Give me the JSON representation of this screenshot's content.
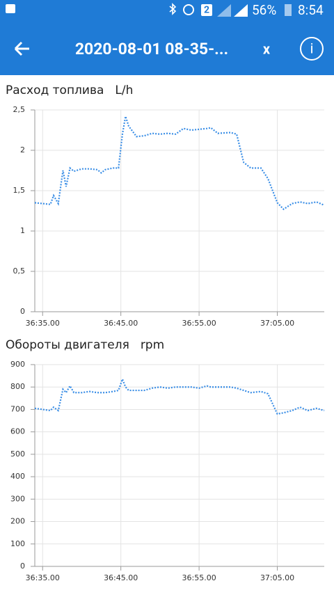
{
  "status_bar": {
    "sim": "2",
    "battery": "56%",
    "time": "8:54"
  },
  "app_bar": {
    "title": "2020-08-01 08-35-...",
    "close": "x"
  },
  "chart_data": [
    {
      "type": "line",
      "title": "Расход топлива",
      "unit": "L/h",
      "x": [
        2194,
        2195,
        2196,
        2196.4,
        2197,
        2197.6,
        2198,
        2198.5,
        2199,
        2200,
        2201,
        2202,
        2202.5,
        2203,
        2204,
        2204.7,
        2205.2,
        2205.6,
        2206,
        2207,
        2208,
        2209,
        2210,
        2211,
        2212,
        2213,
        2214,
        2215,
        2216,
        2216.5,
        2217.4,
        2219,
        2219.8,
        2220.7,
        2221.6,
        2222.9,
        2223.8,
        2225,
        2225.8,
        2226.9,
        2227.9,
        2228.9,
        2230,
        2231
      ],
      "series": [
        {
          "color": "#3a8ee6",
          "values": [
            1.35,
            1.34,
            1.33,
            1.44,
            1.34,
            1.75,
            1.55,
            1.78,
            1.74,
            1.77,
            1.77,
            1.76,
            1.72,
            1.76,
            1.78,
            1.78,
            2.2,
            2.42,
            2.3,
            2.17,
            2.18,
            2.21,
            2.2,
            2.21,
            2.2,
            2.27,
            2.25,
            2.26,
            2.27,
            2.28,
            2.21,
            2.22,
            2.2,
            1.85,
            1.78,
            1.78,
            1.65,
            1.35,
            1.27,
            1.34,
            1.36,
            1.34,
            1.36,
            1.32
          ]
        }
      ],
      "xlim": [
        2194,
        2231
      ],
      "xticks": [
        {
          "value": 2195,
          "label": "36:35.00"
        },
        {
          "value": 2205,
          "label": "36:45.00"
        },
        {
          "value": 2215,
          "label": "36:55.00"
        },
        {
          "value": 2225,
          "label": "37:05.00"
        }
      ],
      "ylim": [
        0,
        2.5
      ],
      "yticks": [
        0,
        {
          "value": 0.5,
          "label": "0,5"
        },
        1,
        {
          "value": 1.5,
          "label": "1,5"
        },
        2,
        {
          "value": 2.5,
          "label": "2,5"
        }
      ],
      "grid": true
    },
    {
      "type": "line",
      "title": "Обороты двигателя",
      "unit": "rpm",
      "x": [
        2194,
        2195,
        2196,
        2196.4,
        2197,
        2197.6,
        2198,
        2198.5,
        2199,
        2200,
        2201,
        2202,
        2203,
        2204,
        2204.7,
        2205.2,
        2205.6,
        2206,
        2207,
        2208,
        2209,
        2210,
        2211,
        2212,
        2213,
        2214,
        2215,
        2216,
        2216.5,
        2217.4,
        2219,
        2219.8,
        2220.7,
        2221.6,
        2222.9,
        2223.8,
        2225,
        2225.8,
        2226.9,
        2227.9,
        2228.9,
        2230,
        2231
      ],
      "series": [
        {
          "color": "#3a8ee6",
          "values": [
            705,
            700,
            695,
            710,
            695,
            790,
            775,
            805,
            775,
            775,
            780,
            775,
            775,
            780,
            785,
            835,
            800,
            785,
            785,
            785,
            795,
            800,
            795,
            800,
            800,
            800,
            795,
            805,
            800,
            800,
            800,
            795,
            785,
            775,
            780,
            770,
            680,
            685,
            695,
            710,
            695,
            705,
            695
          ]
        }
      ],
      "xlim": [
        2194,
        2231
      ],
      "xticks": [
        {
          "value": 2195,
          "label": "36:35.00"
        },
        {
          "value": 2205,
          "label": "36:45.00"
        },
        {
          "value": 2215,
          "label": "36:55.00"
        },
        {
          "value": 2225,
          "label": "37:05.00"
        }
      ],
      "ylim": [
        0,
        900
      ],
      "yticks": [
        0,
        100,
        200,
        300,
        400,
        500,
        600,
        700,
        800,
        900
      ],
      "grid": true
    }
  ]
}
